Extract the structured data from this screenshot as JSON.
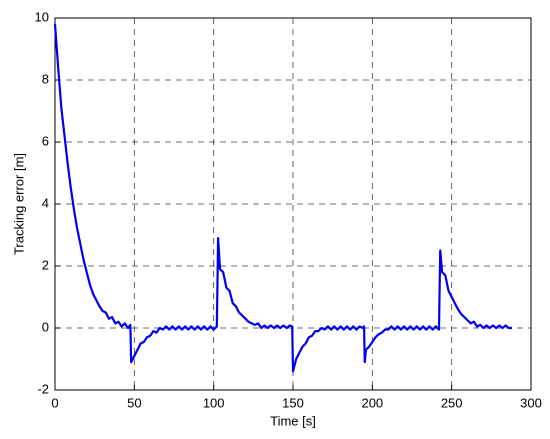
{
  "chart_data": {
    "type": "line",
    "xlabel": "Time [s]",
    "ylabel": "Tracking error [m]",
    "xlim": [
      0,
      300
    ],
    "ylim": [
      -2,
      10
    ],
    "xticks": [
      0,
      50,
      100,
      150,
      200,
      250,
      300
    ],
    "yticks": [
      -2,
      0,
      2,
      4,
      6,
      8,
      10
    ],
    "grid": true,
    "x": [
      0,
      2,
      4,
      6,
      8,
      10,
      12,
      14,
      16,
      18,
      20,
      22,
      24,
      26,
      28,
      30,
      32,
      34,
      36,
      38,
      40,
      42,
      44,
      46,
      47.5,
      48,
      50,
      52,
      54,
      56,
      58,
      60,
      62,
      64,
      66,
      68,
      70,
      72,
      74,
      76,
      78,
      80,
      82,
      84,
      86,
      88,
      90,
      92,
      94,
      96,
      98,
      100,
      102,
      102.8,
      104,
      106,
      108,
      110,
      112,
      114,
      116,
      118,
      120,
      122,
      124,
      126,
      128,
      130,
      132,
      134,
      136,
      138,
      140,
      142,
      144,
      146,
      148,
      149.5,
      150,
      152,
      154,
      156,
      158,
      160,
      162,
      164,
      166,
      168,
      170,
      172,
      174,
      176,
      178,
      180,
      182,
      184,
      186,
      188,
      190,
      192,
      194,
      194.8,
      195.2,
      196,
      198,
      200,
      202,
      204,
      206,
      208,
      210,
      212,
      214,
      216,
      218,
      220,
      222,
      224,
      226,
      228,
      230,
      232,
      234,
      236,
      238,
      240,
      242,
      242.8,
      244,
      246,
      248,
      250,
      252,
      254,
      256,
      258,
      260,
      262,
      264,
      266,
      268,
      270,
      272,
      274,
      276,
      278,
      280,
      282,
      284,
      286,
      288
    ],
    "series": [
      {
        "color": "#0000ee",
        "values": [
          9.8,
          8.4,
          7.1,
          6.2,
          5.3,
          4.5,
          3.8,
          3.2,
          2.7,
          2.2,
          1.8,
          1.4,
          1.1,
          0.9,
          0.7,
          0.55,
          0.5,
          0.3,
          0.35,
          0.15,
          0.2,
          0.05,
          0.15,
          0.0,
          0.1,
          -1.1,
          -0.9,
          -0.7,
          -0.5,
          -0.45,
          -0.3,
          -0.25,
          -0.1,
          -0.15,
          0.0,
          -0.05,
          0.05,
          -0.05,
          0.05,
          -0.05,
          0.05,
          -0.05,
          0.05,
          -0.05,
          0.05,
          -0.05,
          0.05,
          -0.05,
          0.05,
          -0.05,
          0.05,
          -0.05,
          0.05,
          2.9,
          1.9,
          1.8,
          1.3,
          1.2,
          0.8,
          0.7,
          0.5,
          0.4,
          0.3,
          0.2,
          0.15,
          0.1,
          0.15,
          0.0,
          0.08,
          0.0,
          0.08,
          0.0,
          0.08,
          0.0,
          0.08,
          0.0,
          0.08,
          0.05,
          -1.4,
          -1.0,
          -0.8,
          -0.6,
          -0.5,
          -0.3,
          -0.25,
          -0.1,
          -0.1,
          0.0,
          -0.05,
          0.05,
          -0.05,
          0.05,
          -0.05,
          0.05,
          -0.05,
          0.05,
          -0.05,
          0.05,
          -0.05,
          0.05,
          0.0,
          0.05,
          -1.1,
          -0.7,
          -0.6,
          -0.45,
          -0.3,
          -0.2,
          -0.15,
          -0.05,
          -0.05,
          0.05,
          -0.05,
          0.05,
          -0.05,
          0.05,
          -0.05,
          0.05,
          -0.05,
          0.05,
          -0.05,
          0.05,
          -0.05,
          0.05,
          -0.05,
          0.05,
          -0.05,
          2.5,
          1.8,
          1.7,
          1.2,
          1.0,
          0.8,
          0.6,
          0.45,
          0.35,
          0.25,
          0.15,
          0.2,
          0.05,
          0.1,
          0.0,
          0.08,
          0.0,
          0.08,
          0.0,
          0.08,
          0.0,
          0.08,
          0.0,
          0.0
        ]
      }
    ]
  }
}
